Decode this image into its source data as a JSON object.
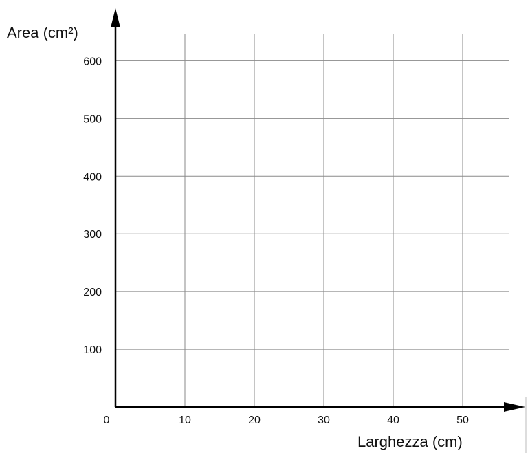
{
  "chart_data": {
    "type": "line",
    "title": "",
    "xlabel": "Larghezza (cm)",
    "ylabel": "Area (cm²)",
    "origin_label": "0",
    "x_ticks": [
      10,
      20,
      30,
      40,
      50
    ],
    "x_tick_labels": [
      "10",
      "20",
      "30",
      "40",
      "50"
    ],
    "y_ticks": [
      100,
      200,
      300,
      400,
      500,
      600
    ],
    "y_tick_labels": [
      "100",
      "200",
      "300",
      "400",
      "500",
      "600"
    ],
    "xlim": [
      0,
      57
    ],
    "ylim": [
      0,
      645
    ],
    "grid": true,
    "series": []
  },
  "colors": {
    "axis": "#000000",
    "grid": "#8a8a8a",
    "text": "#111111"
  }
}
